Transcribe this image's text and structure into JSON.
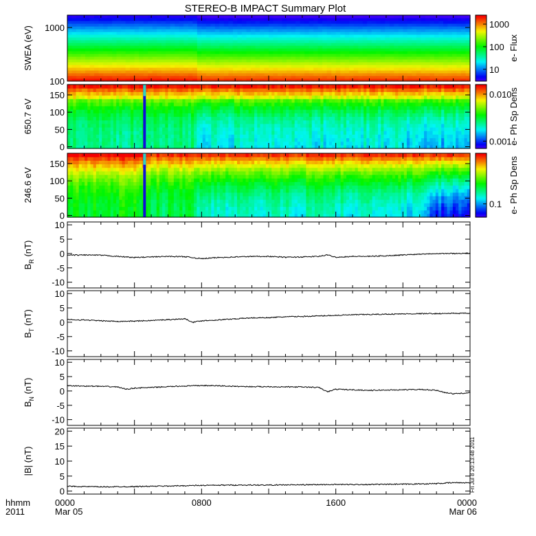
{
  "chart_data": {
    "type": "multi-panel",
    "title": "STEREO-B IMPACT Summary Plot",
    "time_axis": {
      "range_hours": [
        0,
        24
      ],
      "ticks": [
        {
          "t": 0,
          "line1": "0000",
          "line2": "Mar 05"
        },
        {
          "t": 8,
          "line1": "0800",
          "line2": ""
        },
        {
          "t": 16,
          "line1": "1600",
          "line2": ""
        },
        {
          "t": 24,
          "line1": "0000",
          "line2": "Mar 06"
        }
      ],
      "corner_label_1": "hhmm",
      "corner_label_2": "2011"
    },
    "side_stamp": "Fri Jul  8 20:13:48 2011",
    "panels": [
      {
        "id": "swea",
        "type": "heatmap",
        "ylabel": "SWEA (eV)",
        "yscale": "log",
        "ylim": [
          100,
          1700
        ],
        "yticks": [
          {
            "v": 100,
            "label": "100"
          },
          {
            "v": 1000,
            "label": "1000"
          }
        ],
        "colorbar": {
          "label": "e- Flux",
          "scale": "log",
          "range": [
            3,
            2500
          ],
          "ticks": [
            {
              "v": 10,
              "label": "10"
            },
            {
              "v": 100,
              "label": "100"
            },
            {
              "v": 1000,
              "label": "1000"
            }
          ]
        }
      },
      {
        "id": "pad650",
        "type": "heatmap",
        "ylabel": "650.7 eV",
        "ylim": [
          -5,
          180
        ],
        "yticks": [
          {
            "v": 0,
            "label": "0"
          },
          {
            "v": 50,
            "label": "50"
          },
          {
            "v": 100,
            "label": "100"
          },
          {
            "v": 150,
            "label": "150"
          }
        ],
        "data_gap_hours": 4.6,
        "colorbar": {
          "label": "e- Ph Sp Dens",
          "scale": "log",
          "range": [
            0.0007,
            0.016
          ],
          "ticks": [
            {
              "v": 0.001,
              "label": "0.001"
            },
            {
              "v": 0.01,
              "label": "0.010"
            }
          ]
        }
      },
      {
        "id": "pad246",
        "type": "heatmap",
        "ylabel": "246.6 eV",
        "ylim": [
          -5,
          180
        ],
        "yticks": [
          {
            "v": 0,
            "label": "0"
          },
          {
            "v": 50,
            "label": "50"
          },
          {
            "v": 100,
            "label": "100"
          },
          {
            "v": 150,
            "label": "150"
          }
        ],
        "data_gap_hours": 4.6,
        "colorbar": {
          "label": "e- Ph Sp Dens",
          "scale": "log",
          "range": [
            0.06,
            0.7
          ],
          "ticks": [
            {
              "v": 0.1,
              "label": "0.1"
            }
          ]
        }
      },
      {
        "id": "br",
        "type": "line",
        "ylabel_main": "B",
        "ylabel_sub": "R",
        "ylabel_unit": " (nT)",
        "ylim": [
          -12,
          11
        ],
        "yticks": [
          {
            "v": -10,
            "label": "-10"
          },
          {
            "v": -5,
            "label": "-5"
          },
          {
            "v": 0,
            "label": "0"
          },
          {
            "v": 5,
            "label": "5"
          },
          {
            "v": 10,
            "label": "10"
          }
        ],
        "x": [
          0,
          1,
          2,
          3,
          4,
          5,
          6,
          7,
          8,
          9,
          10,
          11,
          12,
          13,
          14,
          15,
          15.5,
          16,
          17,
          18,
          19,
          20,
          21,
          22,
          23,
          24
        ],
        "y": [
          -0.6,
          -0.5,
          -0.6,
          -1.0,
          -1.4,
          -1.2,
          -1.0,
          -1.1,
          -1.8,
          -1.4,
          -1.2,
          -1.0,
          -1.0,
          -1.3,
          -1.2,
          -1.0,
          -0.5,
          -1.3,
          -1.0,
          -1.0,
          -0.8,
          -0.5,
          -0.2,
          0.0,
          0.0,
          0.1
        ]
      },
      {
        "id": "bt",
        "type": "line",
        "ylabel_main": "B",
        "ylabel_sub": "T",
        "ylabel_unit": " (nT)",
        "ylim": [
          -12,
          11
        ],
        "yticks": [
          {
            "v": -10,
            "label": "-10"
          },
          {
            "v": -5,
            "label": "-5"
          },
          {
            "v": 0,
            "label": "0"
          },
          {
            "v": 5,
            "label": "5"
          },
          {
            "v": 10,
            "label": "10"
          }
        ],
        "x": [
          0,
          1,
          2,
          3,
          4,
          5,
          6,
          7,
          7.5,
          8,
          9,
          10,
          11,
          12,
          13,
          14,
          15,
          16,
          17,
          18,
          19,
          20,
          21,
          22,
          23,
          24
        ],
        "y": [
          0.9,
          0.8,
          0.5,
          0.3,
          0.4,
          0.6,
          0.9,
          1.2,
          0.0,
          0.5,
          0.8,
          1.2,
          1.5,
          1.6,
          1.9,
          2.0,
          2.2,
          2.4,
          2.6,
          2.7,
          2.8,
          2.9,
          3.0,
          3.0,
          3.1,
          3.1
        ]
      },
      {
        "id": "bn",
        "type": "line",
        "ylabel_main": "B",
        "ylabel_sub": "N",
        "ylabel_unit": " (nT)",
        "ylim": [
          -12,
          11
        ],
        "yticks": [
          {
            "v": -10,
            "label": "-10"
          },
          {
            "v": -5,
            "label": "-5"
          },
          {
            "v": 0,
            "label": "0"
          },
          {
            "v": 5,
            "label": "5"
          },
          {
            "v": 10,
            "label": "10"
          }
        ],
        "x": [
          0,
          1,
          2,
          3,
          3.5,
          4,
          5,
          6,
          7,
          8,
          9,
          10,
          11,
          12,
          13,
          14,
          15,
          15.5,
          16,
          17,
          18,
          19,
          20,
          21,
          22,
          22.5,
          23,
          24
        ],
        "y": [
          1.8,
          1.7,
          1.6,
          1.4,
          0.6,
          1.0,
          1.2,
          1.5,
          1.7,
          1.9,
          1.8,
          1.6,
          1.5,
          1.5,
          1.4,
          1.4,
          1.2,
          -0.3,
          0.6,
          0.4,
          0.2,
          0.3,
          0.4,
          0.5,
          0.2,
          -0.5,
          -1.0,
          -0.6
        ]
      },
      {
        "id": "bmag",
        "type": "line",
        "ylabel_main": "|B|",
        "ylabel_sub": "",
        "ylabel_unit": " (nT)",
        "ylim": [
          -1,
          21
        ],
        "yticks": [
          {
            "v": 0,
            "label": "0"
          },
          {
            "v": 5,
            "label": "5"
          },
          {
            "v": 10,
            "label": "10"
          },
          {
            "v": 15,
            "label": "15"
          },
          {
            "v": 20,
            "label": "20"
          }
        ],
        "x": [
          0,
          2,
          4,
          6,
          8,
          10,
          12,
          14,
          16,
          18,
          20,
          22,
          23,
          24
        ],
        "y": [
          1.6,
          1.4,
          1.5,
          1.7,
          1.9,
          2.0,
          2.0,
          2.1,
          2.2,
          2.2,
          2.3,
          2.5,
          2.8,
          2.8
        ]
      }
    ]
  }
}
